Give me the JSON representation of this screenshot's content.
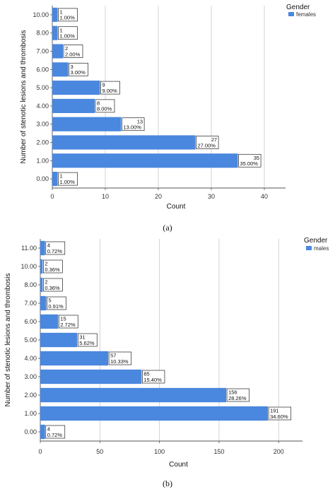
{
  "chart_data": [
    {
      "type": "bar",
      "orientation": "horizontal",
      "caption": "(a)",
      "categories": [
        "0.00",
        "1.00",
        "2.00",
        "3.00",
        "4.00",
        "5.00",
        "6.00",
        "7.00",
        "8.00",
        "10.00"
      ],
      "series": [
        {
          "name": "females",
          "color": "#4a87de",
          "values": [
            1,
            35,
            27,
            13,
            8,
            9,
            3,
            2,
            1,
            1
          ],
          "labels": [
            "1.00%",
            "35.00%",
            "27.00%",
            "13.00%",
            "8.00%",
            "9.00%",
            "3.00%",
            "2.00%",
            "1.00%",
            "1.00%"
          ]
        }
      ],
      "xlabel": "Count",
      "ylabel": "Number of stenotic lesions and thrombosis",
      "xlim": [
        0,
        44
      ],
      "xticks": [
        0,
        10,
        20,
        30,
        40
      ],
      "legend": {
        "title": "Gender",
        "position": "top-right"
      },
      "grid": "vertical"
    },
    {
      "type": "bar",
      "orientation": "horizontal",
      "caption": "(b)",
      "categories": [
        "0.00",
        "1.00",
        "2.00",
        "3.00",
        "4.00",
        "5.00",
        "6.00",
        "7.00",
        "8.00",
        "10.00",
        "11.00"
      ],
      "series": [
        {
          "name": "males",
          "color": "#4a87de",
          "values": [
            4,
            191,
            156,
            85,
            57,
            31,
            15,
            5,
            2,
            2,
            4
          ],
          "labels": [
            "0.72%",
            "34.60%",
            "28.26%",
            "15.40%",
            "10.33%",
            "5.62%",
            "2.72%",
            "0.91%",
            "0.36%",
            "0.36%",
            "0.72%"
          ]
        }
      ],
      "xlabel": "Count",
      "ylabel": "Number of stenotic lesions and thrombosis",
      "xlim": [
        0,
        220
      ],
      "xticks": [
        0,
        50,
        100,
        150,
        200
      ],
      "legend": {
        "title": "Gender",
        "position": "top-right"
      },
      "grid": "vertical"
    }
  ]
}
